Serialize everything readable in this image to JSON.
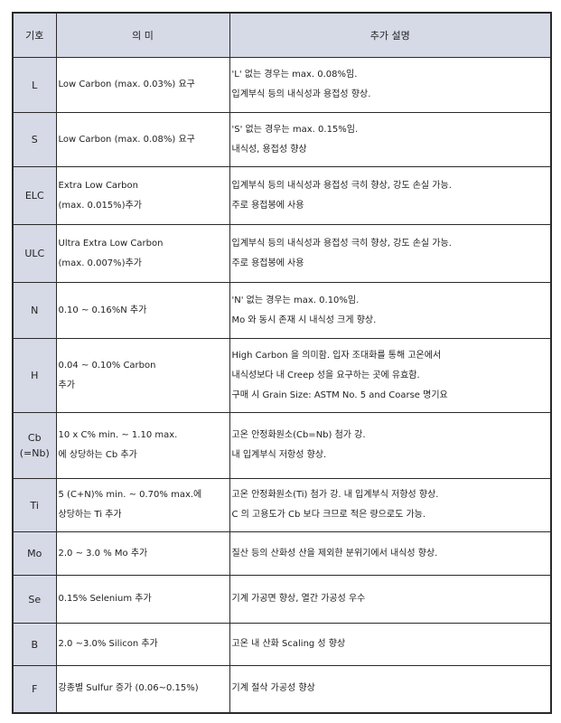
{
  "headers": {
    "symbol": "기호",
    "meaning": "의   미",
    "description": "추가 설명"
  },
  "rows": [
    {
      "symbol": [
        "L"
      ],
      "meaning": [
        "Low Carbon (max. 0.03%) 요구"
      ],
      "description": [
        "'L' 없는 경우는 max. 0.08%임.",
        "입계부식 등의 내식성과 용접성 향상."
      ]
    },
    {
      "symbol": [
        "S"
      ],
      "meaning": [
        "Low Carbon (max. 0.08%) 요구"
      ],
      "description": [
        "'S' 없는 경우는 max. 0.15%임.",
        "내식성, 용접성 향상"
      ]
    },
    {
      "symbol": [
        "ELC"
      ],
      "meaning": [
        "Extra Low Carbon",
        "(max. 0.015%)추가"
      ],
      "description": [
        "입계부식 등의 내식성과 용접성 극히 향상, 강도 손실 가능.",
        "주로 용접봉에 사용"
      ]
    },
    {
      "symbol": [
        "ULC"
      ],
      "meaning": [
        "Ultra Extra Low Carbon",
        "(max. 0.007%)추가"
      ],
      "description": [
        "입계부식 등의 내식성과 용접성 극히 향상, 강도 손실 가능.",
        "주로 용접봉에 사용"
      ]
    },
    {
      "symbol": [
        "N"
      ],
      "meaning": [
        "0.10 ~ 0.16%N 추가"
      ],
      "description": [
        "'N' 없는 경우는 max. 0.10%임.",
        "Mo 와 동시 존재 시 내식성 크게 향상."
      ]
    },
    {
      "symbol": [
        "H"
      ],
      "meaning": [
        "0.04 ~ 0.10% Carbon",
        "추가"
      ],
      "description": [
        "High Carbon 을 의미함.  입자 조대화를 통해 고온에서",
        "내식성보다 내 Creep 성을 요구하는 곳에 유효함.",
        "구매 시 Grain Size: ASTM No. 5 and Coarse 명기요"
      ]
    },
    {
      "symbol": [
        "Cb",
        "(=Nb)"
      ],
      "meaning": [
        "10 x C% min. ~ 1.10 max.",
        "에 상당하는 Cb 추가"
      ],
      "description": [
        "고온 안정화원소(Cb=Nb) 첨가 강.",
        "내 입계부식 저항성 향상."
      ]
    },
    {
      "symbol": [
        "Ti"
      ],
      "meaning": [
        "5 (C+N)% min. ~ 0.70% max.에",
        "상당하는 Ti 추가"
      ],
      "description": [
        "고온 안정화원소(Ti) 첨가 강.  내 입계부식 저항성 향상.",
        "C 의 고용도가 Cb 보다 크므로 적은 량으로도 가능."
      ]
    },
    {
      "symbol": [
        "Mo"
      ],
      "meaning": [
        "2.0 ~ 3.0 % Mo 추가"
      ],
      "description": [
        "질산 등의 산화성 산을 제외한 분위기에서 내식성 향상."
      ]
    },
    {
      "symbol": [
        "Se"
      ],
      "meaning": [
        "0.15% Selenium 추가"
      ],
      "description": [
        "기계 가공면 향상, 열간 가공성 우수"
      ]
    },
    {
      "symbol": [
        "B"
      ],
      "meaning": [
        "2.0 ~3.0% Silicon 추가"
      ],
      "description": [
        "고온 내 산화 Scaling 성 향상"
      ]
    },
    {
      "symbol": [
        "F"
      ],
      "meaning": [
        "강종별 Sulfur 증가 (0.06~0.15%)"
      ],
      "description": [
        "기계 절삭 가공성 향상"
      ]
    }
  ]
}
